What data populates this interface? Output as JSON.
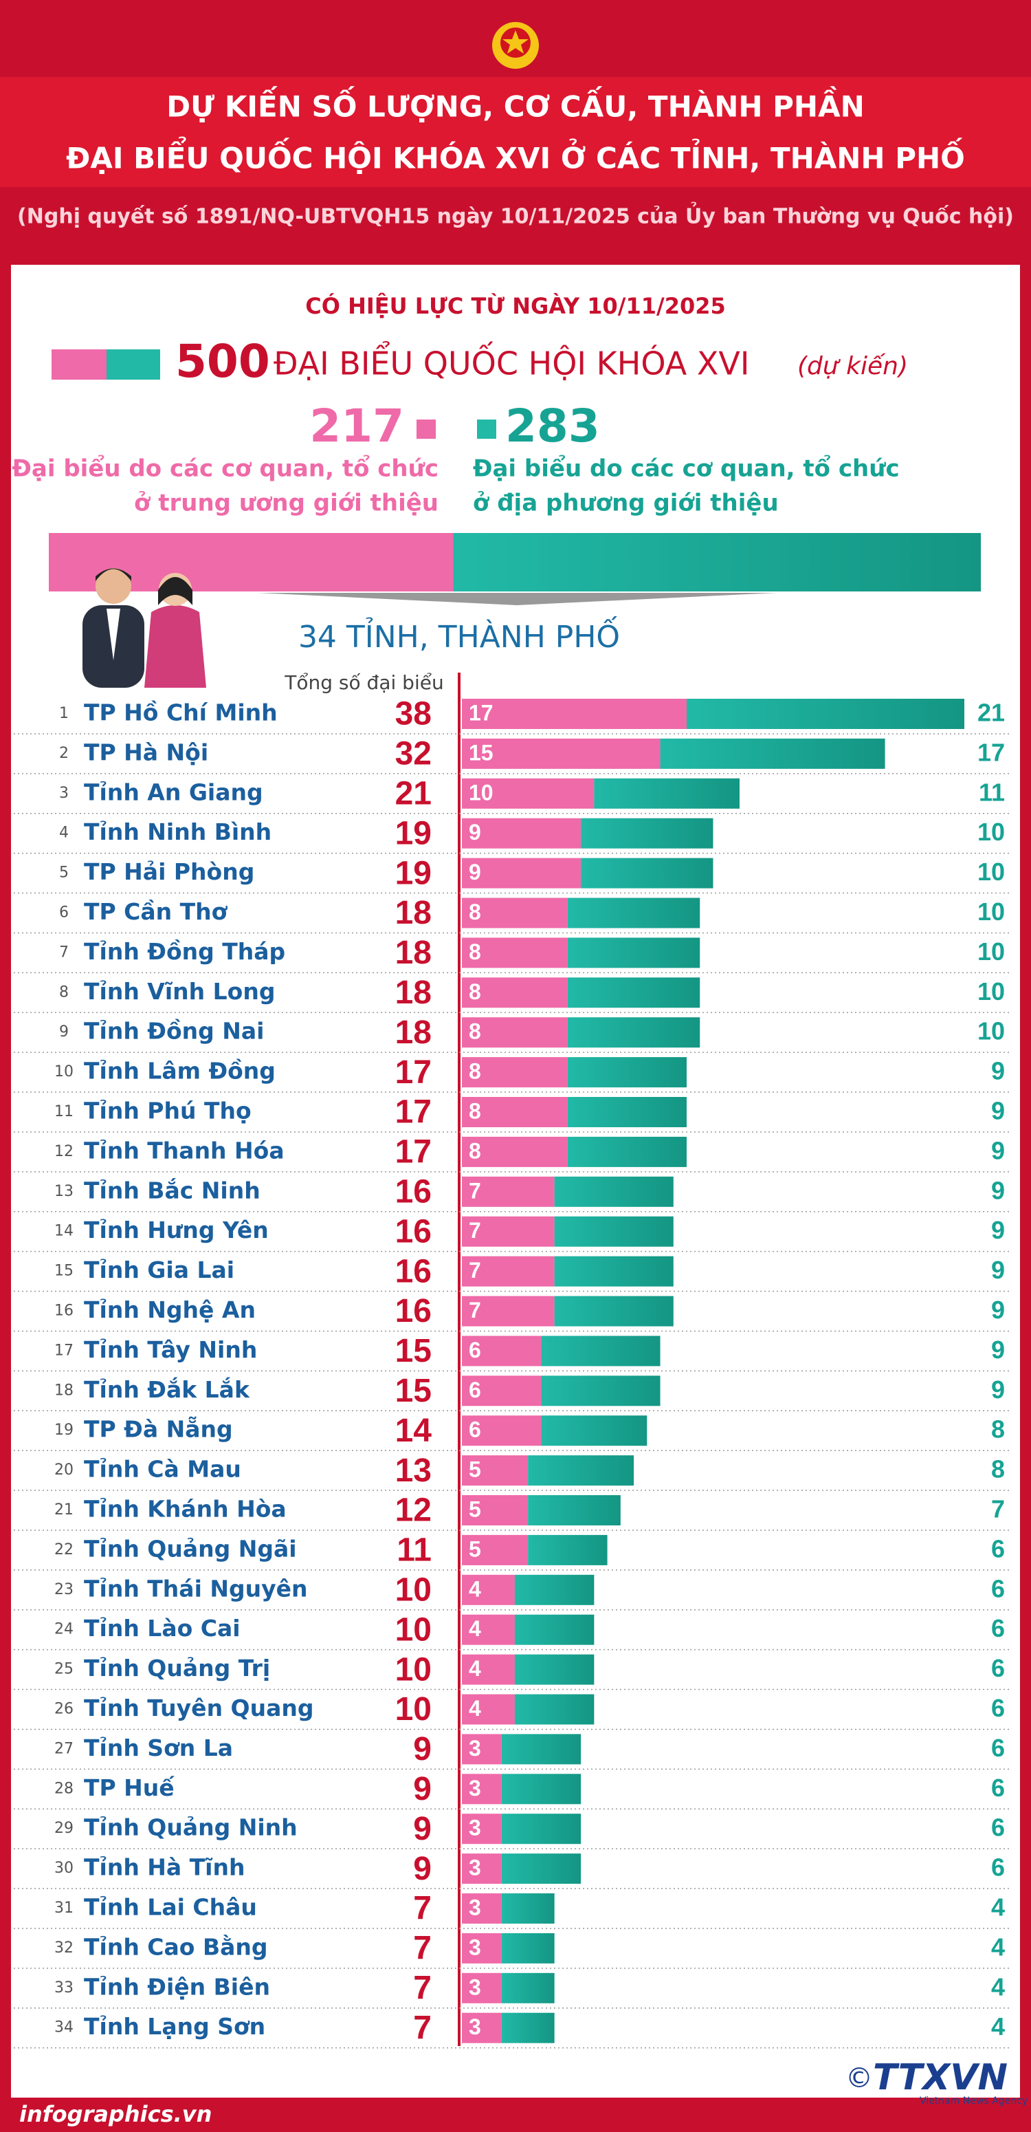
{
  "header": {
    "title_line1": "DỰ KIẾN SỐ LƯỢNG, CƠ CẤU, THÀNH PHẦN",
    "title_line2": "ĐẠI BIỂU QUỐC HỘI KHÓA XVI Ở CÁC TỈNH, THÀNH PHỐ",
    "subtitle": "(Nghị quyết số 1891/NQ-UBTVQH15 ngày 10/11/2025 của Ủy ban Thường vụ Quốc hội)"
  },
  "effective": "CÓ HIỆU LỰC TỪ NGÀY 10/11/2025",
  "summary": {
    "total": 500,
    "total_label": "ĐẠI BIỂU QUỐC HỘI KHÓA XVI",
    "note": "(dự kiến)",
    "central": 217,
    "central_label_1": "Đại biểu do các cơ quan, tổ chức",
    "central_label_2": "ở trung ương giới thiệu",
    "local": 283,
    "local_label_1": "Đại biểu do các cơ quan, tổ chức",
    "local_label_2": "ở địa phương giới thiệu"
  },
  "chart_data": {
    "type": "bar",
    "title": "34 TỈNH, THÀNH PHỐ",
    "total_label": "Tổng số đại biểu",
    "ranks": [
      "1",
      "2",
      "3",
      "4",
      "5",
      "6",
      "7",
      "8",
      "9",
      "10",
      "11",
      "12",
      "13",
      "14",
      "15",
      "16",
      "17",
      "18",
      "19",
      "20",
      "21",
      "22",
      "23",
      "24",
      "25",
      "26",
      "27",
      "28",
      "29",
      "30",
      "31",
      "32",
      "33",
      "34"
    ],
    "categories": [
      "TP Hồ Chí Minh",
      "TP Hà Nội",
      "Tỉnh An Giang",
      "Tỉnh Ninh Bình",
      "TP Hải Phòng",
      "TP Cần Thơ",
      "Tỉnh Đồng Tháp",
      "Tỉnh Vĩnh Long",
      "Tỉnh Đồng Nai",
      "Tỉnh Lâm Đồng",
      "Tỉnh Phú Thọ",
      "Tỉnh Thanh Hóa",
      "Tỉnh Bắc Ninh",
      "Tỉnh Hưng Yên",
      "Tỉnh Gia Lai",
      "Tỉnh Nghệ An",
      "Tỉnh Tây Ninh",
      "Tỉnh Đắk Lắk",
      "TP Đà Nẵng",
      "Tỉnh Cà Mau",
      "Tỉnh Khánh Hòa",
      "Tỉnh Quảng Ngãi",
      "Tỉnh Thái Nguyên",
      "Tỉnh Lào Cai",
      "Tỉnh Quảng Trị",
      "Tỉnh Tuyên Quang",
      "Tỉnh Sơn La",
      "TP Huế",
      "Tỉnh Quảng Ninh",
      "Tỉnh Hà Tĩnh",
      "Tỉnh Lai Châu",
      "Tỉnh Cao Bằng",
      "Tỉnh Điện Biên",
      "Tỉnh Lạng Sơn"
    ],
    "totals": [
      38,
      32,
      21,
      19,
      19,
      18,
      18,
      18,
      18,
      17,
      17,
      17,
      16,
      16,
      16,
      16,
      15,
      15,
      14,
      13,
      12,
      11,
      10,
      10,
      10,
      10,
      9,
      9,
      9,
      9,
      7,
      7,
      7,
      7
    ],
    "series": [
      {
        "color": "#ef6aa8",
        "values": [
          17,
          15,
          10,
          9,
          9,
          8,
          8,
          8,
          8,
          8,
          8,
          8,
          7,
          7,
          7,
          7,
          6,
          6,
          6,
          5,
          5,
          5,
          4,
          4,
          4,
          4,
          3,
          3,
          3,
          3,
          3,
          3,
          3,
          3
        ]
      },
      {
        "color": "#22b9a7",
        "values": [
          21,
          17,
          11,
          10,
          10,
          10,
          10,
          10,
          10,
          9,
          9,
          9,
          9,
          9,
          9,
          9,
          9,
          9,
          8,
          8,
          7,
          6,
          6,
          6,
          6,
          6,
          6,
          6,
          6,
          6,
          4,
          4,
          4,
          4
        ]
      }
    ],
    "xlim": [
      0,
      38
    ]
  },
  "footer": {
    "site": "infographics.vn",
    "copyright": "©",
    "logo": "TTXVN",
    "agency": "Vietnam News Agency"
  }
}
